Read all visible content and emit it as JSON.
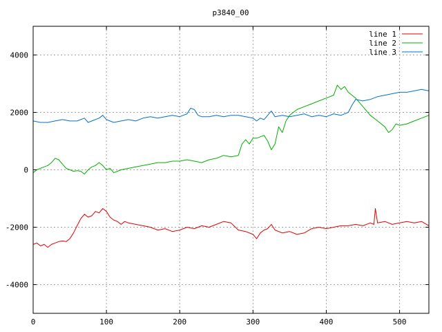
{
  "chart_data": {
    "type": "line",
    "title": "p3840_00",
    "xlabel": "",
    "ylabel": "",
    "xlim": [
      0,
      540
    ],
    "ylim": [
      -5000,
      5000
    ],
    "x_ticks": [
      0,
      100,
      200,
      300,
      400,
      500
    ],
    "y_ticks": [
      -4000,
      -2000,
      0,
      2000,
      4000
    ],
    "grid": true,
    "legend_position": "top-right",
    "series": [
      {
        "name": "line 1",
        "color": "#e00000",
        "points": [
          [
            0,
            -2600
          ],
          [
            5,
            -2550
          ],
          [
            10,
            -2650
          ],
          [
            15,
            -2600
          ],
          [
            20,
            -2700
          ],
          [
            25,
            -2600
          ],
          [
            30,
            -2550
          ],
          [
            35,
            -2500
          ],
          [
            40,
            -2480
          ],
          [
            45,
            -2500
          ],
          [
            50,
            -2400
          ],
          [
            55,
            -2200
          ],
          [
            60,
            -1950
          ],
          [
            65,
            -1700
          ],
          [
            70,
            -1550
          ],
          [
            75,
            -1650
          ],
          [
            80,
            -1600
          ],
          [
            85,
            -1450
          ],
          [
            90,
            -1500
          ],
          [
            95,
            -1350
          ],
          [
            100,
            -1450
          ],
          [
            105,
            -1650
          ],
          [
            110,
            -1750
          ],
          [
            115,
            -1800
          ],
          [
            120,
            -1900
          ],
          [
            125,
            -1800
          ],
          [
            130,
            -1850
          ],
          [
            140,
            -1900
          ],
          [
            150,
            -1950
          ],
          [
            160,
            -2000
          ],
          [
            170,
            -2100
          ],
          [
            180,
            -2050
          ],
          [
            190,
            -2150
          ],
          [
            200,
            -2100
          ],
          [
            210,
            -2000
          ],
          [
            220,
            -2050
          ],
          [
            230,
            -1950
          ],
          [
            240,
            -2000
          ],
          [
            250,
            -1900
          ],
          [
            260,
            -1800
          ],
          [
            270,
            -1850
          ],
          [
            280,
            -2100
          ],
          [
            290,
            -2150
          ],
          [
            300,
            -2250
          ],
          [
            305,
            -2400
          ],
          [
            310,
            -2200
          ],
          [
            315,
            -2100
          ],
          [
            320,
            -2050
          ],
          [
            325,
            -1900
          ],
          [
            330,
            -2100
          ],
          [
            340,
            -2200
          ],
          [
            350,
            -2150
          ],
          [
            360,
            -2250
          ],
          [
            370,
            -2200
          ],
          [
            380,
            -2050
          ],
          [
            390,
            -2000
          ],
          [
            400,
            -2050
          ],
          [
            410,
            -2000
          ],
          [
            420,
            -1950
          ],
          [
            430,
            -1950
          ],
          [
            440,
            -1900
          ],
          [
            450,
            -1950
          ],
          [
            460,
            -1850
          ],
          [
            465,
            -1900
          ],
          [
            467,
            -1350
          ],
          [
            470,
            -1850
          ],
          [
            480,
            -1800
          ],
          [
            490,
            -1900
          ],
          [
            500,
            -1850
          ],
          [
            510,
            -1800
          ],
          [
            520,
            -1850
          ],
          [
            530,
            -1800
          ],
          [
            540,
            -1950
          ]
        ]
      },
      {
        "name": "line 2",
        "color": "#00b000",
        "points": [
          [
            0,
            -100
          ],
          [
            5,
            0
          ],
          [
            10,
            50
          ],
          [
            15,
            100
          ],
          [
            20,
            150
          ],
          [
            25,
            250
          ],
          [
            30,
            400
          ],
          [
            35,
            350
          ],
          [
            40,
            200
          ],
          [
            45,
            50
          ],
          [
            50,
            0
          ],
          [
            55,
            -50
          ],
          [
            60,
            -30
          ],
          [
            65,
            -50
          ],
          [
            70,
            -150
          ],
          [
            75,
            0
          ],
          [
            80,
            100
          ],
          [
            85,
            150
          ],
          [
            90,
            250
          ],
          [
            95,
            150
          ],
          [
            100,
            0
          ],
          [
            105,
            50
          ],
          [
            110,
            -100
          ],
          [
            115,
            -50
          ],
          [
            120,
            0
          ],
          [
            130,
            50
          ],
          [
            140,
            100
          ],
          [
            150,
            150
          ],
          [
            160,
            200
          ],
          [
            170,
            250
          ],
          [
            180,
            250
          ],
          [
            190,
            300
          ],
          [
            200,
            300
          ],
          [
            210,
            350
          ],
          [
            220,
            300
          ],
          [
            230,
            250
          ],
          [
            240,
            350
          ],
          [
            250,
            400
          ],
          [
            260,
            500
          ],
          [
            270,
            450
          ],
          [
            280,
            500
          ],
          [
            285,
            900
          ],
          [
            290,
            1050
          ],
          [
            295,
            900
          ],
          [
            300,
            1100
          ],
          [
            305,
            1100
          ],
          [
            310,
            1150
          ],
          [
            315,
            1200
          ],
          [
            320,
            1000
          ],
          [
            325,
            700
          ],
          [
            330,
            900
          ],
          [
            335,
            1500
          ],
          [
            340,
            1300
          ],
          [
            345,
            1700
          ],
          [
            350,
            1900
          ],
          [
            360,
            2100
          ],
          [
            370,
            2200
          ],
          [
            380,
            2300
          ],
          [
            390,
            2400
          ],
          [
            400,
            2500
          ],
          [
            410,
            2600
          ],
          [
            415,
            2950
          ],
          [
            420,
            2800
          ],
          [
            425,
            2900
          ],
          [
            430,
            2700
          ],
          [
            440,
            2500
          ],
          [
            450,
            2200
          ],
          [
            460,
            1900
          ],
          [
            470,
            1700
          ],
          [
            480,
            1500
          ],
          [
            485,
            1300
          ],
          [
            490,
            1400
          ],
          [
            495,
            1600
          ],
          [
            500,
            1550
          ],
          [
            510,
            1600
          ],
          [
            520,
            1700
          ],
          [
            530,
            1800
          ],
          [
            540,
            1900
          ]
        ]
      },
      {
        "name": "line 3",
        "color": "#0070d0",
        "points": [
          [
            0,
            1700
          ],
          [
            10,
            1650
          ],
          [
            20,
            1650
          ],
          [
            30,
            1700
          ],
          [
            40,
            1750
          ],
          [
            50,
            1700
          ],
          [
            60,
            1700
          ],
          [
            70,
            1800
          ],
          [
            75,
            1650
          ],
          [
            80,
            1700
          ],
          [
            90,
            1800
          ],
          [
            95,
            1900
          ],
          [
            100,
            1750
          ],
          [
            110,
            1650
          ],
          [
            120,
            1700
          ],
          [
            130,
            1750
          ],
          [
            140,
            1700
          ],
          [
            150,
            1800
          ],
          [
            160,
            1850
          ],
          [
            170,
            1800
          ],
          [
            180,
            1850
          ],
          [
            190,
            1900
          ],
          [
            200,
            1850
          ],
          [
            210,
            1950
          ],
          [
            215,
            2150
          ],
          [
            220,
            2100
          ],
          [
            225,
            1900
          ],
          [
            230,
            1850
          ],
          [
            240,
            1850
          ],
          [
            250,
            1900
          ],
          [
            260,
            1850
          ],
          [
            270,
            1900
          ],
          [
            280,
            1900
          ],
          [
            290,
            1850
          ],
          [
            300,
            1800
          ],
          [
            305,
            1700
          ],
          [
            310,
            1800
          ],
          [
            315,
            1750
          ],
          [
            320,
            1900
          ],
          [
            325,
            2050
          ],
          [
            330,
            1850
          ],
          [
            340,
            1900
          ],
          [
            350,
            1850
          ],
          [
            360,
            1900
          ],
          [
            370,
            1950
          ],
          [
            380,
            1850
          ],
          [
            390,
            1900
          ],
          [
            400,
            1850
          ],
          [
            410,
            1950
          ],
          [
            420,
            1900
          ],
          [
            430,
            2000
          ],
          [
            435,
            2250
          ],
          [
            440,
            2450
          ],
          [
            450,
            2400
          ],
          [
            460,
            2450
          ],
          [
            470,
            2550
          ],
          [
            480,
            2600
          ],
          [
            490,
            2650
          ],
          [
            500,
            2700
          ],
          [
            510,
            2700
          ],
          [
            520,
            2750
          ],
          [
            530,
            2800
          ],
          [
            540,
            2750
          ]
        ]
      }
    ]
  }
}
